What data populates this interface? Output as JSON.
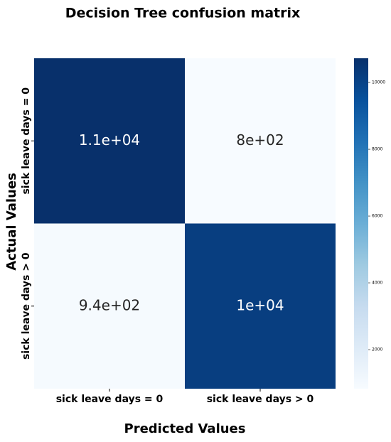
{
  "chart_data": {
    "type": "heatmap",
    "title": "Decision Tree confusion matrix",
    "x_label": "Predicted Values",
    "y_label": "Actual Values",
    "x_categories": [
      "sick leave days = 0",
      "sick leave days > 0"
    ],
    "y_categories": [
      "sick leave days = 0",
      "sick leave days > 0"
    ],
    "values": [
      [
        10725,
        830
      ],
      [
        940,
        10200
      ]
    ],
    "value_labels": [
      [
        "1.1e+04",
        "8e+02"
      ],
      [
        "9.4e+02",
        "1e+04"
      ]
    ],
    "zlim": [
      830,
      10725
    ],
    "zticks": [
      2000,
      4000,
      6000,
      8000,
      10000
    ],
    "colormap": "Blues"
  }
}
